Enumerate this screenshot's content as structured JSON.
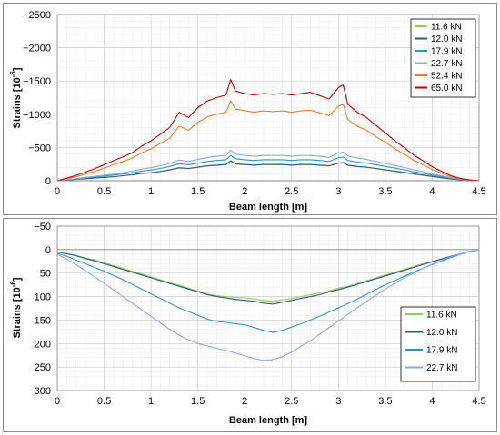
{
  "chart_data": [
    {
      "type": "line",
      "title": "",
      "xlabel": "Beam length [m]",
      "ylabel": "Strains [10",
      "ylabel_exp": "-6",
      "ylabel_close": "]",
      "xlim": [
        0,
        4.5
      ],
      "ylim": [
        -2500,
        0
      ],
      "y_inverted": true,
      "x_ticks": [
        "0",
        "0.5",
        "1",
        "1.5",
        "2",
        "2.5",
        "3",
        "3.5",
        "4",
        "4.5"
      ],
      "x_tick_values": [
        0,
        0.5,
        1,
        1.5,
        2,
        2.5,
        3,
        3.5,
        4,
        4.5
      ],
      "y_ticks": [
        "−2500",
        "−2000",
        "−1500",
        "−1000",
        "−500",
        "0"
      ],
      "y_tick_values": [
        -2500,
        -2000,
        -1500,
        -1000,
        -500,
        0
      ],
      "grid": true,
      "legend": "top-right",
      "x": [
        0,
        0.1,
        0.2,
        0.3,
        0.4,
        0.5,
        0.6,
        0.7,
        0.8,
        0.9,
        1.0,
        1.1,
        1.2,
        1.3,
        1.4,
        1.5,
        1.6,
        1.7,
        1.8,
        1.85,
        1.9,
        2.0,
        2.1,
        2.2,
        2.3,
        2.4,
        2.5,
        2.6,
        2.7,
        2.8,
        2.9,
        3.0,
        3.05,
        3.1,
        3.2,
        3.3,
        3.4,
        3.5,
        3.6,
        3.7,
        3.8,
        3.9,
        4.0,
        4.1,
        4.2,
        4.3,
        4.4,
        4.5
      ],
      "series": [
        {
          "name": "11.6 kN",
          "color": "#92d050",
          "values": [
            0,
            -10,
            -20,
            -30,
            -40,
            -50,
            -60,
            -75,
            -90,
            -110,
            -120,
            -140,
            -160,
            -190,
            -180,
            -200,
            -220,
            -230,
            -240,
            -290,
            -250,
            -240,
            -230,
            -240,
            -240,
            -240,
            -230,
            -240,
            -240,
            -230,
            -220,
            -260,
            -270,
            -230,
            -210,
            -200,
            -180,
            -160,
            -140,
            -120,
            -100,
            -80,
            -60,
            -40,
            -25,
            -15,
            -5,
            0
          ]
        },
        {
          "name": "12.0 kN",
          "color": "#2f5597",
          "values": [
            0,
            -10,
            -20,
            -30,
            -40,
            -50,
            -60,
            -75,
            -90,
            -110,
            -120,
            -140,
            -165,
            -195,
            -185,
            -205,
            -225,
            -235,
            -245,
            -300,
            -255,
            -245,
            -235,
            -245,
            -245,
            -245,
            -235,
            -245,
            -245,
            -235,
            -225,
            -265,
            -275,
            -235,
            -215,
            -205,
            -185,
            -165,
            -145,
            -125,
            -105,
            -85,
            -65,
            -45,
            -28,
            -15,
            -5,
            0
          ]
        },
        {
          "name": "17.9 kN",
          "color": "#2e9ab5",
          "values": [
            0,
            -15,
            -25,
            -40,
            -55,
            -70,
            -85,
            -100,
            -120,
            -145,
            -160,
            -185,
            -215,
            -255,
            -240,
            -265,
            -290,
            -305,
            -315,
            -380,
            -330,
            -315,
            -305,
            -315,
            -315,
            -315,
            -305,
            -315,
            -315,
            -305,
            -290,
            -345,
            -355,
            -305,
            -280,
            -265,
            -240,
            -215,
            -190,
            -165,
            -135,
            -110,
            -85,
            -60,
            -38,
            -20,
            -8,
            0
          ]
        },
        {
          "name": "22.7 kN",
          "color": "#8eaadb",
          "values": [
            0,
            -18,
            -30,
            -50,
            -65,
            -85,
            -100,
            -120,
            -145,
            -175,
            -195,
            -225,
            -260,
            -310,
            -290,
            -320,
            -350,
            -370,
            -380,
            -460,
            -400,
            -380,
            -370,
            -380,
            -380,
            -380,
            -370,
            -380,
            -380,
            -370,
            -350,
            -420,
            -430,
            -370,
            -340,
            -320,
            -290,
            -260,
            -230,
            -200,
            -165,
            -135,
            -100,
            -75,
            -45,
            -25,
            -10,
            0
          ]
        },
        {
          "name": "52.4 kN",
          "color": "#ed7d31",
          "values": [
            0,
            -30,
            -60,
            -100,
            -140,
            -190,
            -240,
            -290,
            -340,
            -420,
            -480,
            -560,
            -640,
            -820,
            -760,
            -880,
            -960,
            -1000,
            -1030,
            -1200,
            -1080,
            -1050,
            -1030,
            -1050,
            -1040,
            -1050,
            -1030,
            -1050,
            -1060,
            -1020,
            -980,
            -1120,
            -1150,
            -920,
            -820,
            -760,
            -660,
            -580,
            -480,
            -400,
            -310,
            -240,
            -170,
            -110,
            -60,
            -30,
            -10,
            0
          ]
        },
        {
          "name": "65.0 kN",
          "color": "#c00000",
          "values": [
            0,
            -40,
            -80,
            -130,
            -180,
            -240,
            -300,
            -360,
            -420,
            -520,
            -600,
            -700,
            -800,
            -1030,
            -950,
            -1100,
            -1200,
            -1250,
            -1290,
            -1520,
            -1350,
            -1310,
            -1290,
            -1310,
            -1300,
            -1310,
            -1290,
            -1310,
            -1330,
            -1280,
            -1230,
            -1400,
            -1440,
            -1150,
            -1030,
            -950,
            -830,
            -720,
            -600,
            -500,
            -390,
            -300,
            -210,
            -140,
            -75,
            -35,
            -12,
            0
          ]
        }
      ]
    },
    {
      "type": "line",
      "title": "",
      "xlabel": "Beam length [m]",
      "ylabel": "Strains [10",
      "ylabel_exp": "-6",
      "ylabel_close": "]",
      "xlim": [
        0,
        4.5
      ],
      "ylim": [
        -50,
        300
      ],
      "y_inverted": true,
      "x_ticks": [
        "0",
        "0.5",
        "1",
        "1.5",
        "2",
        "2.5",
        "3",
        "3.5",
        "4",
        "4.5"
      ],
      "x_tick_values": [
        0,
        0.5,
        1,
        1.5,
        2,
        2.5,
        3,
        3.5,
        4,
        4.5
      ],
      "y_ticks": [
        "−50",
        "0",
        "50",
        "100",
        "150",
        "200",
        "250",
        "300"
      ],
      "y_tick_values": [
        -50,
        0,
        50,
        100,
        150,
        200,
        250,
        300
      ],
      "grid": true,
      "legend": "bottom-right",
      "x": [
        0,
        0.1,
        0.2,
        0.3,
        0.4,
        0.5,
        0.6,
        0.7,
        0.8,
        0.9,
        1.0,
        1.1,
        1.2,
        1.3,
        1.4,
        1.5,
        1.6,
        1.7,
        1.8,
        1.9,
        2.0,
        2.1,
        2.2,
        2.3,
        2.4,
        2.5,
        2.6,
        2.7,
        2.8,
        2.9,
        3.0,
        3.1,
        3.2,
        3.3,
        3.4,
        3.5,
        3.6,
        3.7,
        3.8,
        3.9,
        4.0,
        4.1,
        4.2,
        4.3,
        4.4,
        4.5
      ],
      "series": [
        {
          "name": "11.6 kN",
          "color": "#92d050",
          "values": [
            5,
            8,
            12,
            18,
            22,
            28,
            34,
            40,
            46,
            52,
            58,
            64,
            70,
            76,
            82,
            88,
            94,
            98,
            100,
            102,
            103,
            105,
            108,
            110,
            107,
            104,
            100,
            96,
            92,
            88,
            82,
            78,
            72,
            66,
            60,
            54,
            48,
            42,
            36,
            30,
            25,
            20,
            15,
            10,
            5,
            0
          ]
        },
        {
          "name": "12.0 kN",
          "color": "#2f5597",
          "values": [
            5,
            9,
            13,
            19,
            24,
            30,
            36,
            42,
            48,
            54,
            60,
            66,
            72,
            78,
            84,
            90,
            96,
            100,
            103,
            106,
            108,
            110,
            114,
            116,
            112,
            108,
            104,
            100,
            96,
            90,
            85,
            80,
            74,
            68,
            62,
            56,
            50,
            44,
            38,
            32,
            26,
            20,
            14,
            9,
            4,
            0
          ]
        },
        {
          "name": "17.9 kN",
          "color": "#2e9ab5",
          "values": [
            8,
            14,
            22,
            30,
            38,
            46,
            55,
            64,
            74,
            84,
            94,
            104,
            114,
            124,
            132,
            140,
            148,
            153,
            155,
            158,
            160,
            166,
            172,
            176,
            172,
            165,
            158,
            150,
            142,
            133,
            124,
            115,
            105,
            95,
            85,
            75,
            66,
            57,
            48,
            40,
            32,
            24,
            17,
            10,
            4,
            0
          ]
        },
        {
          "name": "22.7 kN",
          "color": "#8eaadb",
          "values": [
            10,
            20,
            32,
            45,
            58,
            72,
            86,
            100,
            114,
            128,
            142,
            156,
            170,
            182,
            192,
            200,
            205,
            210,
            215,
            220,
            226,
            232,
            236,
            234,
            228,
            218,
            206,
            194,
            180,
            166,
            152,
            138,
            124,
            110,
            97,
            84,
            72,
            60,
            50,
            40,
            31,
            23,
            15,
            9,
            4,
            0
          ]
        }
      ]
    }
  ]
}
